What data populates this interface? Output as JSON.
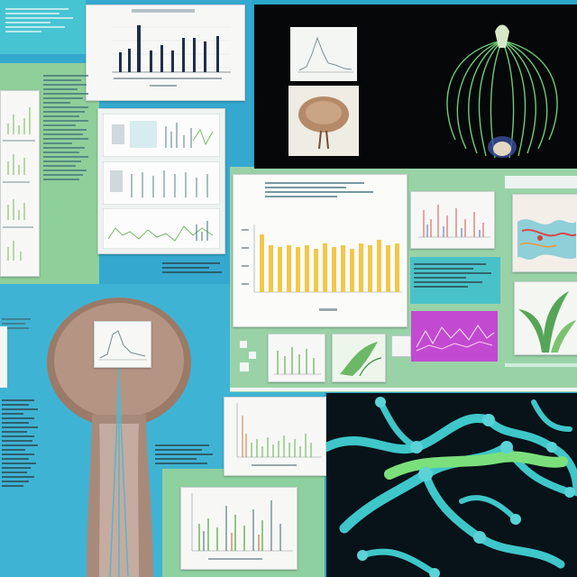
{
  "panels": {
    "top_right_title_left": "",
    "top_right_title_right": "",
    "top_right_caption": ""
  },
  "colors": {
    "background_blue": "#2aa6c8",
    "panel_green": "#8fcf9a",
    "panel_teal": "#49c1c9",
    "panel_dark": "#050708",
    "chart_yellow": "#f2c84a",
    "chart_green": "#79b86b",
    "chart_navy": "#1f2f4a",
    "accent_purple": "#c24ad1"
  },
  "icons": {
    "seedling": "seedling-icon",
    "roots": "root-network-icon",
    "leaf": "leaf-icon"
  }
}
